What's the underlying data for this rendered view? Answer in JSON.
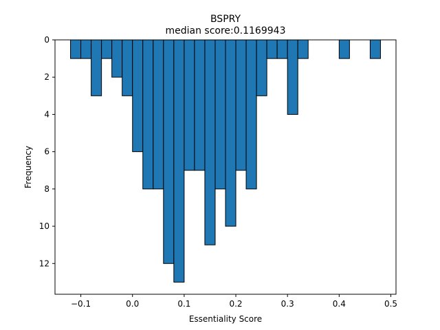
{
  "chart_data": {
    "type": "bar",
    "title": "BSPRY",
    "subtitle": "median score:0.1169943",
    "xlabel": "Essentiality Score",
    "ylabel": "Frequency",
    "xlim": [
      -0.15,
      0.51
    ],
    "ylim": [
      0,
      13.65
    ],
    "y_inverted": true,
    "x_ticks": [
      -0.1,
      0.0,
      0.1,
      0.2,
      0.3,
      0.4,
      0.5
    ],
    "x_tick_labels": [
      "−0.1",
      "0.0",
      "0.1",
      "0.2",
      "0.3",
      "0.4",
      "0.5"
    ],
    "y_ticks": [
      0,
      2,
      4,
      6,
      8,
      10,
      12
    ],
    "y_tick_labels": [
      "0",
      "2",
      "4",
      "6",
      "8",
      "10",
      "12"
    ],
    "grid": false,
    "bar_color": "#1f77b4",
    "edge_color": "#000000",
    "bin_width": 0.02,
    "bins": [
      {
        "left": -0.12,
        "count": 1
      },
      {
        "left": -0.1,
        "count": 1
      },
      {
        "left": -0.08,
        "count": 3
      },
      {
        "left": -0.06,
        "count": 1
      },
      {
        "left": -0.04,
        "count": 2
      },
      {
        "left": -0.02,
        "count": 3
      },
      {
        "left": 0.0,
        "count": 6
      },
      {
        "left": 0.02,
        "count": 8
      },
      {
        "left": 0.04,
        "count": 8
      },
      {
        "left": 0.06,
        "count": 12
      },
      {
        "left": 0.08,
        "count": 13
      },
      {
        "left": 0.1,
        "count": 7
      },
      {
        "left": 0.12,
        "count": 7
      },
      {
        "left": 0.14,
        "count": 11
      },
      {
        "left": 0.16,
        "count": 8
      },
      {
        "left": 0.18,
        "count": 10
      },
      {
        "left": 0.2,
        "count": 7
      },
      {
        "left": 0.22,
        "count": 8
      },
      {
        "left": 0.24,
        "count": 3
      },
      {
        "left": 0.26,
        "count": 1
      },
      {
        "left": 0.28,
        "count": 1
      },
      {
        "left": 0.3,
        "count": 4
      },
      {
        "left": 0.32,
        "count": 1
      },
      {
        "left": 0.4,
        "count": 1
      },
      {
        "left": 0.46,
        "count": 1
      }
    ]
  }
}
